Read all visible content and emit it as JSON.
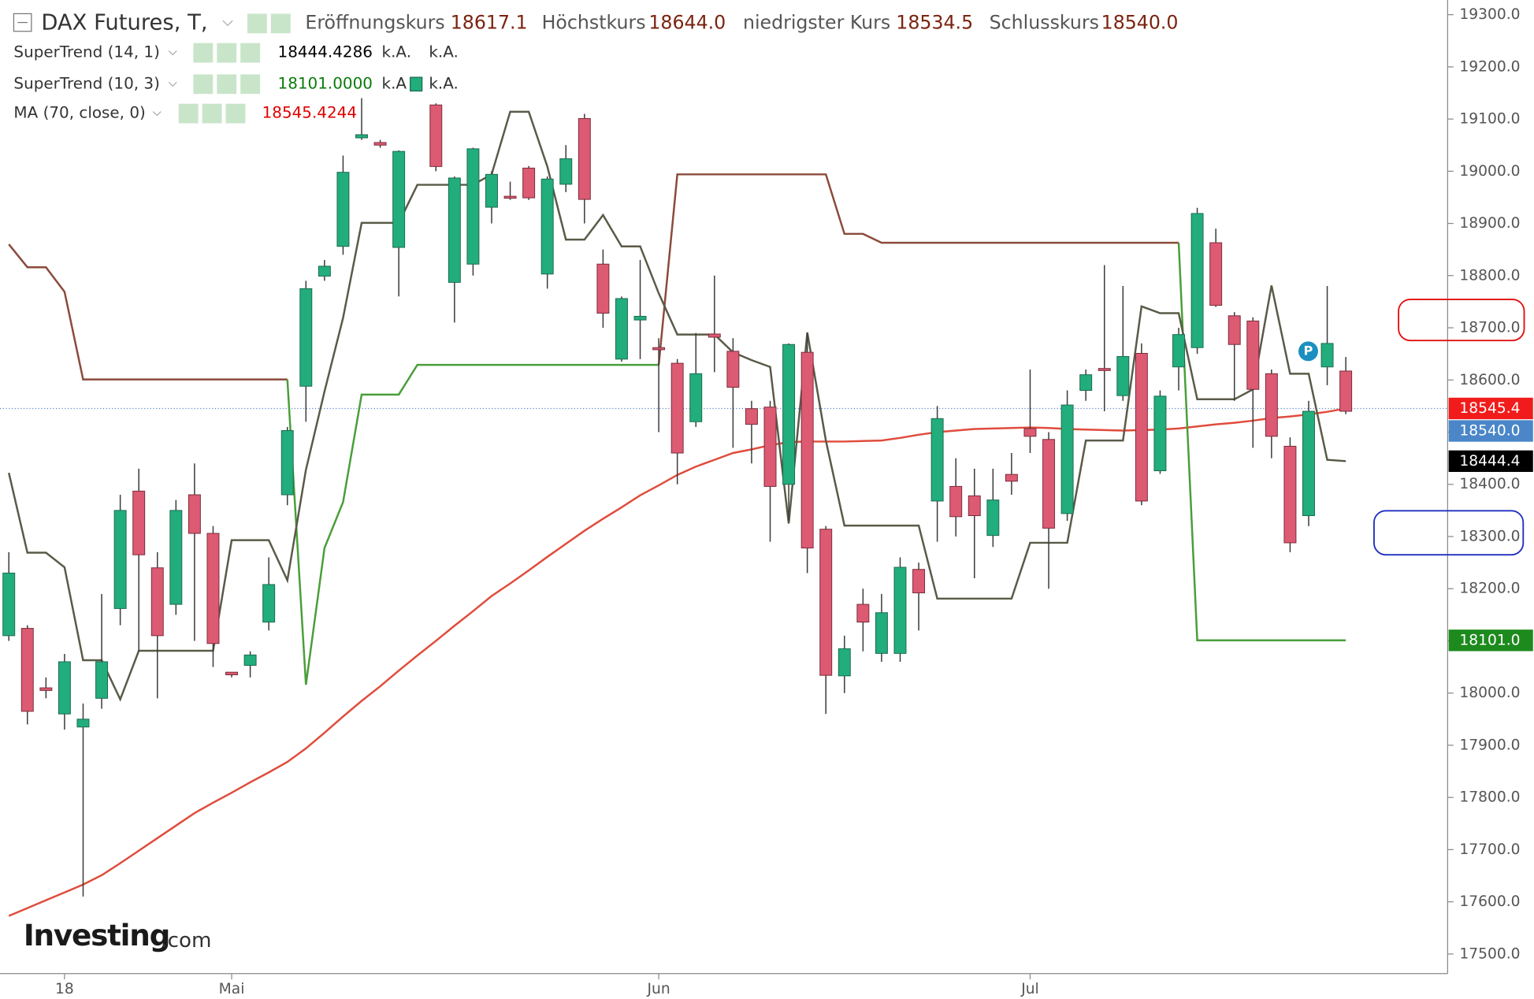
{
  "chart_data": {
    "type": "candlestick",
    "title": "DAX Futures, T,",
    "ohlc_legend": [
      {
        "label": "Eröffnungskurs",
        "value": "18617.1"
      },
      {
        "label": "Höchstkurs",
        "value": "18644.0"
      },
      {
        "label": "niedrigster Kurs",
        "value": "18534.5"
      },
      {
        "label": "Schlusskurs",
        "value": "18540.0"
      }
    ],
    "categories": [
      null,
      null,
      null,
      "18",
      null,
      null,
      null,
      null,
      null,
      null,
      null,
      null,
      "Mai",
      null,
      null,
      null,
      null,
      null,
      null,
      null,
      null,
      null,
      null,
      null,
      null,
      null,
      null,
      null,
      null,
      null,
      null,
      null,
      null,
      null,
      null,
      "Jun",
      null,
      null,
      null,
      null,
      null,
      null,
      null,
      null,
      null,
      null,
      null,
      null,
      null,
      null,
      null,
      null,
      null,
      null,
      null,
      "Jul",
      null,
      null,
      null,
      null,
      null,
      null,
      null,
      null,
      null,
      null,
      null,
      null,
      null,
      null,
      null,
      null,
      null
    ],
    "open": [
      18110,
      18124,
      18010,
      17960,
      17935,
      17990,
      18162,
      18387,
      18240,
      18170,
      18380,
      18306,
      18040,
      18053,
      18136,
      18380,
      18588,
      18799,
      18856,
      19064,
      19055,
      18854,
      null,
      19127,
      18787,
      18822,
      18931,
      18952,
      19006,
      18803,
      18975,
      19101,
      18822,
      18640,
      18715,
      18662,
      18632,
      18520,
      18688,
      18655,
      18545,
      18548,
      18400,
      18653,
      18314,
      18033,
      18170,
      18076,
      18076,
      18237,
      18368,
      18396,
      18378,
      18302,
      18419,
      18507,
      18486,
      18344,
      18580,
      18622,
      18570,
      18651,
      18426,
      18625,
      18662,
      18863,
      18723,
      18713,
      18612,
      18473,
      18340,
      18625,
      18617.1
    ],
    "high": [
      18270,
      18130,
      18030,
      18075,
      17980,
      18190,
      18380,
      18430,
      18270,
      18370,
      18440,
      18320,
      18040,
      18080,
      18260,
      18510,
      18790,
      18830,
      19030,
      19140,
      19060,
      19040,
      null,
      19130,
      18990,
      19045,
      19000,
      18980,
      19010,
      18990,
      19050,
      19110,
      18850,
      18760,
      18830,
      18680,
      18640,
      18690,
      18800,
      18680,
      18560,
      18560,
      18670,
      18690,
      18320,
      18110,
      18200,
      18190,
      18260,
      18250,
      18550,
      18450,
      18430,
      18430,
      18460,
      18620,
      18500,
      18580,
      18620,
      18820,
      18780,
      18670,
      18580,
      18700,
      18930,
      18890,
      18730,
      18720,
      18620,
      18490,
      18560,
      18780,
      18644
    ],
    "low": [
      18100,
      17940,
      17990,
      17930,
      17610,
      17970,
      18130,
      18080,
      17990,
      18150,
      18100,
      18050,
      18030,
      18030,
      18120,
      18360,
      18520,
      18790,
      18840,
      19060,
      19045,
      18760,
      null,
      19000,
      18710,
      18800,
      18900,
      18945,
      18945,
      18775,
      18960,
      18900,
      18700,
      18635,
      18640,
      18500,
      18400,
      18510,
      18615,
      18470,
      18440,
      18290,
      18330,
      18230,
      17960,
      18000,
      18080,
      18060,
      18060,
      18120,
      18290,
      18300,
      18220,
      18280,
      18380,
      18460,
      18200,
      18330,
      18560,
      18540,
      18560,
      18360,
      18420,
      18580,
      18650,
      18740,
      18560,
      18470,
      18450,
      18270,
      18320,
      18590,
      18534.5
    ],
    "close": [
      18230,
      17965,
      18005,
      18060,
      17950,
      18060,
      18350,
      18265,
      18110,
      18350,
      18306,
      18095,
      18035,
      18073,
      18208,
      18503,
      18775,
      18818,
      18998,
      19070,
      19050,
      19038,
      null,
      19009,
      18987,
      19043,
      18994,
      18950,
      18949,
      18985,
      19024,
      18946,
      18728,
      18756,
      18722,
      18658,
      18460,
      18612,
      18682,
      18586,
      18515,
      18396,
      18668,
      18278,
      18034,
      18085,
      18136,
      18154,
      18241,
      18192,
      18526,
      18338,
      18340,
      18370,
      18406,
      18492,
      18316,
      18552,
      18610,
      18618,
      18645,
      18368,
      18569,
      18687,
      18919,
      18743,
      18668,
      18582,
      18492,
      18288,
      18540,
      18670,
      18540
    ],
    "up_color": "#22ad7c",
    "down_color": "#dd5a73",
    "series": [
      {
        "name": "SuperTrend (14, 1)",
        "color": "#5a5a48",
        "readout": "18444.4286",
        "readout_color": "#000000",
        "status": [
          "k.A.",
          "k.A."
        ],
        "values": [
          18422,
          18269,
          18269,
          18241,
          18063,
          18063,
          17988,
          18081,
          18081,
          18081,
          18081,
          18081,
          18293,
          18293,
          18293,
          18216,
          18428,
          18578,
          18719,
          18901,
          18901,
          18901,
          18974,
          18974,
          18974,
          18974,
          18994,
          19114,
          19114,
          19009,
          18869,
          18869,
          18916,
          18856,
          18856,
          18766,
          18687,
          18687,
          18687,
          18653,
          18638,
          18625,
          18325,
          18691,
          18484,
          18321,
          18321,
          18321,
          18321,
          18321,
          18181,
          18181,
          18181,
          18181,
          18181,
          18288,
          18288,
          18288,
          18484,
          18484,
          18484,
          18741,
          18728,
          18728,
          18563,
          18563,
          18563,
          18582,
          18781,
          18612,
          18612,
          18447,
          18444.4286
        ]
      },
      {
        "name": "SuperTrend (10, 3)",
        "color": "#8b4a3c",
        "readout": "18101.0000",
        "readout_color": "#0a7a0a",
        "status": [
          "k.A",
          "k.A."
        ],
        "values": [
          18860,
          18816,
          18816,
          18769,
          18601,
          18601,
          18601,
          18601,
          18601,
          18601,
          18601,
          18601,
          18601,
          18601,
          18601,
          18601,
          18016,
          18278,
          18366,
          18572,
          18572,
          18572,
          18629,
          18629,
          18629,
          18629,
          18629,
          18629,
          18629,
          18629,
          18629,
          18629,
          18629,
          18629,
          18629,
          18629,
          18994,
          18994,
          18994,
          18994,
          18994,
          18994,
          18994,
          18994,
          18994,
          18880,
          18880,
          18863,
          18863,
          18863,
          18863,
          18863,
          18863,
          18863,
          18863,
          18863,
          18863,
          18863,
          18863,
          18863,
          18863,
          18863,
          18863,
          18863,
          18101,
          18101,
          18101,
          18101,
          18101,
          18101,
          18101,
          18101,
          18101
        ],
        "colors": [
          "#8b4a3c",
          "#8b4a3c",
          "#8b4a3c",
          "#8b4a3c",
          "#8b4a3c",
          "#8b4a3c",
          "#8b4a3c",
          "#8b4a3c",
          "#8b4a3c",
          "#8b4a3c",
          "#8b4a3c",
          "#8b4a3c",
          "#8b4a3c",
          "#8b4a3c",
          "#8b4a3c",
          "#8b4a3c",
          "#4a9e3a",
          "#4a9e3a",
          "#4a9e3a",
          "#4a9e3a",
          "#4a9e3a",
          "#4a9e3a",
          "#4a9e3a",
          "#4a9e3a",
          "#4a9e3a",
          "#4a9e3a",
          "#4a9e3a",
          "#4a9e3a",
          "#4a9e3a",
          "#4a9e3a",
          "#4a9e3a",
          "#4a9e3a",
          "#4a9e3a",
          "#4a9e3a",
          "#4a9e3a",
          "#4a9e3a",
          "#8b4a3c",
          "#8b4a3c",
          "#8b4a3c",
          "#8b4a3c",
          "#8b4a3c",
          "#8b4a3c",
          "#8b4a3c",
          "#8b4a3c",
          "#8b4a3c",
          "#8b4a3c",
          "#8b4a3c",
          "#8b4a3c",
          "#8b4a3c",
          "#8b4a3c",
          "#8b4a3c",
          "#8b4a3c",
          "#8b4a3c",
          "#8b4a3c",
          "#8b4a3c",
          "#8b4a3c",
          "#8b4a3c",
          "#8b4a3c",
          "#8b4a3c",
          "#8b4a3c",
          "#8b4a3c",
          "#8b4a3c",
          "#8b4a3c",
          "#8b4a3c",
          "#4a9e3a",
          "#4a9e3a",
          "#4a9e3a",
          "#4a9e3a",
          "#4a9e3a",
          "#4a9e3a",
          "#4a9e3a",
          "#4a9e3a",
          "#4a9e3a"
        ]
      },
      {
        "name": "MA (70, close, 0)",
        "color": "#e04c3c",
        "readout": "18545.4244",
        "readout_color": "#e00000",
        "values": [
          17573,
          17588,
          17603,
          17618,
          17633,
          17651,
          17674,
          17698,
          17722,
          17746,
          17770,
          17790,
          17809,
          17829,
          17848,
          17868,
          17894,
          17924,
          17955,
          17985,
          18013,
          18043,
          18072,
          18100,
          18129,
          18157,
          18186,
          18210,
          18235,
          18261,
          18286,
          18311,
          18334,
          18356,
          18379,
          18398,
          18418,
          18434,
          18447,
          18460,
          18467,
          18475,
          18481,
          18482,
          18482,
          18482,
          18483,
          18484,
          18489,
          18495,
          18500,
          18503,
          18506,
          18507,
          18508,
          18509,
          18508,
          18506,
          18505,
          18504,
          18503,
          18504,
          18505,
          18507,
          18511,
          18515,
          18518,
          18522,
          18527,
          18530,
          18534,
          18539,
          18545.4244
        ]
      }
    ],
    "price_tags": [
      {
        "value": 18545.4,
        "color": "#f21b1b"
      },
      {
        "value": {
          "value": 18540,
          "label": "18540.0"
        },
        "color": "#4a86c8"
      },
      {
        "value": 18444.4,
        "color": "#000000"
      },
      {
        "value": {
          "value": 18101,
          "label": "18101.0"
        },
        "color": "#1d8a1d"
      }
    ],
    "marker": "P",
    "logo": {
      "brand": "Investing",
      "suffix": ".com"
    },
    "ylim": [
      17462.5,
      19328.125
    ],
    "yticks": [
      {
        "value": 19300,
        "label": "19300.0"
      },
      {
        "value": 19200,
        "label": "19200.0"
      },
      {
        "value": 19100,
        "label": "19100.0"
      },
      {
        "value": 19000,
        "label": "19000.0"
      },
      {
        "value": 18900,
        "label": "18900.0"
      },
      {
        "value": 18800,
        "label": "18800.0"
      },
      {
        "value": 18700,
        "label": "18700.0"
      },
      {
        "value": 18600,
        "label": "18600.0"
      },
      {
        "value": 18500,
        "label": "18500.0"
      },
      {
        "value": 18400,
        "label": "18400.0"
      },
      {
        "value": 18300,
        "label": "18300.0"
      },
      {
        "value": 18200,
        "label": "18200.0"
      },
      {
        "value": 18100,
        "label": "18100.0"
      },
      {
        "value": 18000,
        "label": "18000.0"
      },
      {
        "value": 17900,
        "label": "17900.0"
      },
      {
        "value": 17800,
        "label": "17800.0"
      },
      {
        "value": 17700,
        "label": "17700.0"
      },
      {
        "value": 17600,
        "label": "17600.0"
      },
      {
        "value": 17500,
        "label": "17500.0"
      }
    ],
    "grid": false
  }
}
